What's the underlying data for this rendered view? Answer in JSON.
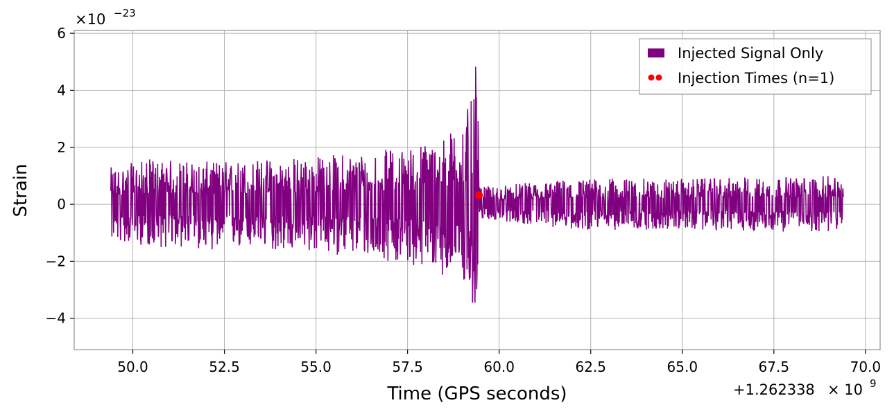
{
  "chart_data": {
    "type": "line",
    "title": "",
    "xlabel": "Time (GPS seconds)",
    "ylabel": "Strain",
    "x_offset_text": "+1.262338",
    "x_offset_exp_base": "× 10",
    "x_offset_exp": "9",
    "y_scale_text": "×10",
    "y_scale_exp": "−23",
    "xlim": [
      48.4,
      70.4
    ],
    "ylim": [
      -5.1,
      6.1
    ],
    "xticks": [
      50.0,
      52.5,
      55.0,
      57.5,
      60.0,
      62.5,
      65.0,
      67.5,
      70.0
    ],
    "xtick_labels": [
      "50.0",
      "52.5",
      "55.0",
      "57.5",
      "60.0",
      "62.5",
      "65.0",
      "67.5",
      "70.0"
    ],
    "yticks": [
      -4,
      -2,
      0,
      2,
      4,
      6
    ],
    "ytick_labels": [
      "−4",
      "−2",
      "0",
      "2",
      "4",
      "6"
    ],
    "grid": true,
    "legend_position": "top-right",
    "series": [
      {
        "name": "Injected Signal Only",
        "kind": "line",
        "color": "#800080",
        "x_start": 49.4,
        "x_end": 69.4,
        "envelope": [
          {
            "x": 49.4,
            "lo": -1.3,
            "hi": 1.3
          },
          {
            "x": 50.5,
            "lo": -1.5,
            "hi": 1.6
          },
          {
            "x": 52.0,
            "lo": -1.6,
            "hi": 1.5
          },
          {
            "x": 53.5,
            "lo": -1.6,
            "hi": 1.6
          },
          {
            "x": 55.0,
            "lo": -1.7,
            "hi": 1.7
          },
          {
            "x": 56.5,
            "lo": -1.9,
            "hi": 1.9
          },
          {
            "x": 57.5,
            "lo": -2.1,
            "hi": 2.0
          },
          {
            "x": 58.5,
            "lo": -2.5,
            "hi": 2.4
          },
          {
            "x": 59.0,
            "lo": -3.0,
            "hi": 3.0
          },
          {
            "x": 59.3,
            "lo": -3.8,
            "hi": 3.8
          },
          {
            "x": 59.4,
            "lo": -4.6,
            "hi": 5.6
          },
          {
            "x": 59.45,
            "lo": -0.5,
            "hi": 0.6
          },
          {
            "x": 62.0,
            "lo": -0.9,
            "hi": 0.9
          },
          {
            "x": 65.0,
            "lo": -0.9,
            "hi": 0.9
          },
          {
            "x": 69.4,
            "lo": -1.0,
            "hi": 1.0
          }
        ]
      },
      {
        "name": "Injection Times (n=1)",
        "kind": "scatter",
        "color": "#ff0000",
        "points": [
          {
            "x": 59.45,
            "y": 0.32
          }
        ]
      }
    ]
  }
}
